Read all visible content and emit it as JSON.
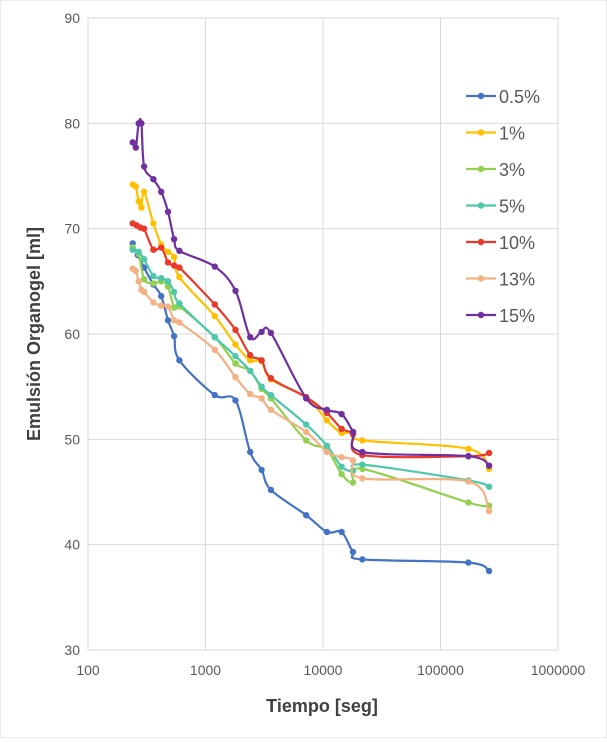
{
  "chart_data": {
    "type": "line",
    "title": "",
    "xlabel": "Tiempo [seg]",
    "ylabel": "Emulsión Organogel [ml]",
    "x_scale": "log",
    "xlim": [
      100,
      1000000
    ],
    "ylim": [
      30,
      90
    ],
    "x_ticks": [
      100,
      1000,
      10000,
      100000,
      1000000
    ],
    "x_tick_labels": [
      "100",
      "1000",
      "10000",
      "100000",
      "1000000"
    ],
    "y_ticks": [
      30,
      40,
      50,
      60,
      70,
      80,
      90
    ],
    "y_tick_labels": [
      "30",
      "40",
      "50",
      "60",
      "70",
      "80",
      "90"
    ],
    "grid": true,
    "legend_position": "right",
    "series": [
      {
        "name": "0.5%",
        "color": "#4472C4",
        "x": [
          240,
          265,
          300,
          360,
          420,
          480,
          540,
          600,
          1200,
          1800,
          2400,
          3000,
          3600,
          7200,
          10800,
          14400,
          18000,
          21600,
          172800,
          259200
        ],
        "y": [
          68.6,
          67.5,
          66.3,
          64.7,
          63.6,
          61.3,
          59.8,
          57.5,
          54.2,
          53.7,
          48.8,
          47.1,
          45.2,
          42.8,
          41.2,
          41.2,
          39.3,
          38.6,
          38.3,
          37.5
        ]
      },
      {
        "name": "1%",
        "color": "#FFC000",
        "x": [
          240,
          255,
          270,
          285,
          300,
          360,
          420,
          480,
          540,
          600,
          1200,
          1800,
          2400,
          3000,
          3600,
          7200,
          10800,
          14400,
          18000,
          21600,
          172800,
          259200
        ],
        "y": [
          74.2,
          74.0,
          72.6,
          72.0,
          73.5,
          70.5,
          68.5,
          67.8,
          67.3,
          65.4,
          61.7,
          59.0,
          57.5,
          57.4,
          55.7,
          54.0,
          51.8,
          50.6,
          50.7,
          49.9,
          49.1,
          47.2
        ]
      },
      {
        "name": "3%",
        "color": "#92D050",
        "x": [
          240,
          270,
          300,
          360,
          420,
          480,
          540,
          600,
          1200,
          1800,
          2400,
          3000,
          3600,
          7200,
          10800,
          14400,
          18000,
          21600,
          172800,
          259200
        ],
        "y": [
          68.2,
          67.6,
          65.2,
          64.8,
          65.0,
          64.5,
          62.5,
          62.6,
          59.7,
          57.2,
          56.5,
          54.8,
          53.9,
          49.9,
          49.0,
          46.7,
          45.9,
          47.2,
          44.0,
          43.7
        ]
      },
      {
        "name": "5%",
        "color": "#4DC8A8",
        "x": [
          240,
          270,
          300,
          360,
          420,
          480,
          540,
          600,
          1200,
          1800,
          2400,
          3000,
          3600,
          7200,
          10800,
          14400,
          18000,
          21600,
          172800,
          259200
        ],
        "y": [
          68.0,
          67.8,
          67.1,
          65.5,
          65.3,
          65.0,
          64.0,
          62.9,
          59.7,
          57.9,
          56.5,
          55.0,
          54.2,
          51.4,
          49.4,
          47.4,
          47.0,
          47.6,
          46.1,
          45.5
        ]
      },
      {
        "name": "10%",
        "color": "#E8392A",
        "x": [
          240,
          260,
          280,
          300,
          360,
          420,
          480,
          540,
          600,
          1200,
          1800,
          2400,
          3000,
          3600,
          7200,
          10800,
          14400,
          18000,
          21600,
          172800,
          259200
        ],
        "y": [
          70.5,
          70.3,
          70.1,
          70.0,
          68.0,
          68.2,
          66.8,
          66.5,
          66.3,
          62.8,
          60.4,
          58.0,
          57.5,
          55.8,
          54.0,
          52.5,
          51.0,
          50.5,
          48.5,
          48.4,
          48.7
        ]
      },
      {
        "name": "13%",
        "color": "#F4B183",
        "x": [
          240,
          255,
          270,
          285,
          300,
          360,
          420,
          480,
          540,
          600,
          1200,
          1800,
          2400,
          3000,
          3600,
          7200,
          10800,
          14400,
          18000,
          21600,
          172800,
          259200
        ],
        "y": [
          66.2,
          66.0,
          65.0,
          64.2,
          64.0,
          63.0,
          62.7,
          62.6,
          61.3,
          61.1,
          58.5,
          55.9,
          54.3,
          53.9,
          52.8,
          50.7,
          48.8,
          48.3,
          48.0,
          46.3,
          46.0,
          43.2
        ]
      },
      {
        "name": "15%",
        "color": "#7030A0",
        "x": [
          240,
          255,
          270,
          285,
          300,
          360,
          420,
          480,
          540,
          600,
          1200,
          1800,
          2400,
          3000,
          3600,
          7200,
          10800,
          14400,
          18000,
          21600,
          172800,
          259200
        ],
        "y": [
          78.2,
          77.7,
          80.0,
          80.0,
          75.9,
          74.7,
          73.5,
          71.6,
          69.0,
          67.9,
          66.4,
          64.1,
          59.7,
          60.2,
          60.1,
          53.9,
          52.8,
          52.4,
          50.7,
          48.8,
          48.4,
          47.5
        ]
      }
    ]
  }
}
